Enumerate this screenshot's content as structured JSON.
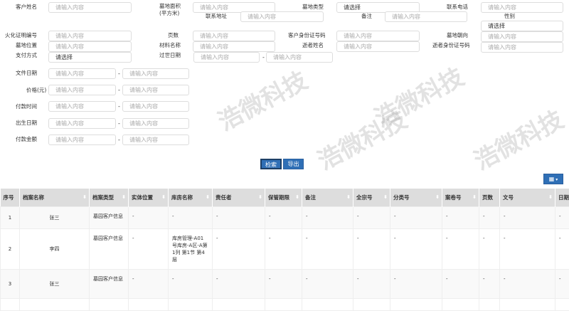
{
  "form": {
    "placeholder": "请输入内容",
    "select_placeholder": "请选择",
    "range_sep": "-",
    "labels": {
      "customer_name": "客户姓名",
      "plot_area": "墓地面积",
      "plot_area_unit": "(平方米)",
      "plot_type": "墓地类型",
      "phone": "联系电话",
      "address": "联系地址",
      "remark": "备注",
      "gender": "性别",
      "cremation_no": "火化证明编号",
      "pages": "页数",
      "customer_id": "客户身份证号码",
      "plot_direction": "墓地朝向",
      "plot_location": "墓地位置",
      "material_name": "材料名称",
      "deceased_name": "逝者姓名",
      "deceased_id": "逝者身份证号码",
      "payment_method": "支付方式",
      "death_date": "过世日期",
      "file_date": "文件日期",
      "price": "价格(元)",
      "payment_time": "付款时间",
      "birth_date": "出生日期",
      "payment_amount": "付款金额"
    }
  },
  "buttons": {
    "search": "检索",
    "export": "导出"
  },
  "icons": {
    "columns": "grid-icon",
    "dropdown": "caret-down-icon"
  },
  "watermark": "浩微科技",
  "table": {
    "headers": [
      "序号",
      "档案名称",
      "档案类型",
      "实体位置",
      "库房名称",
      "责任者",
      "保管期限",
      "备注",
      "全宗号",
      "分类号",
      "案卷号",
      "页数",
      "文号",
      "日期"
    ],
    "rows": [
      [
        "1",
        "张三",
        "墓园客户信息",
        "-",
        "-",
        "-",
        "-",
        "-",
        "-",
        "-",
        "-",
        "-",
        "-",
        "-"
      ],
      [
        "2",
        "李四",
        "墓园客户信息",
        "-",
        "库房管理-A01号库房-A区-A第1列 第1节 第4层",
        "-",
        "-",
        "-",
        "-",
        "-",
        "-",
        "-",
        "-",
        "-"
      ],
      [
        "3",
        "张三",
        "墓园客户信息",
        "-",
        "-",
        "-",
        "-",
        "-",
        "-",
        "-",
        "-",
        "-",
        "-",
        "-"
      ]
    ]
  }
}
